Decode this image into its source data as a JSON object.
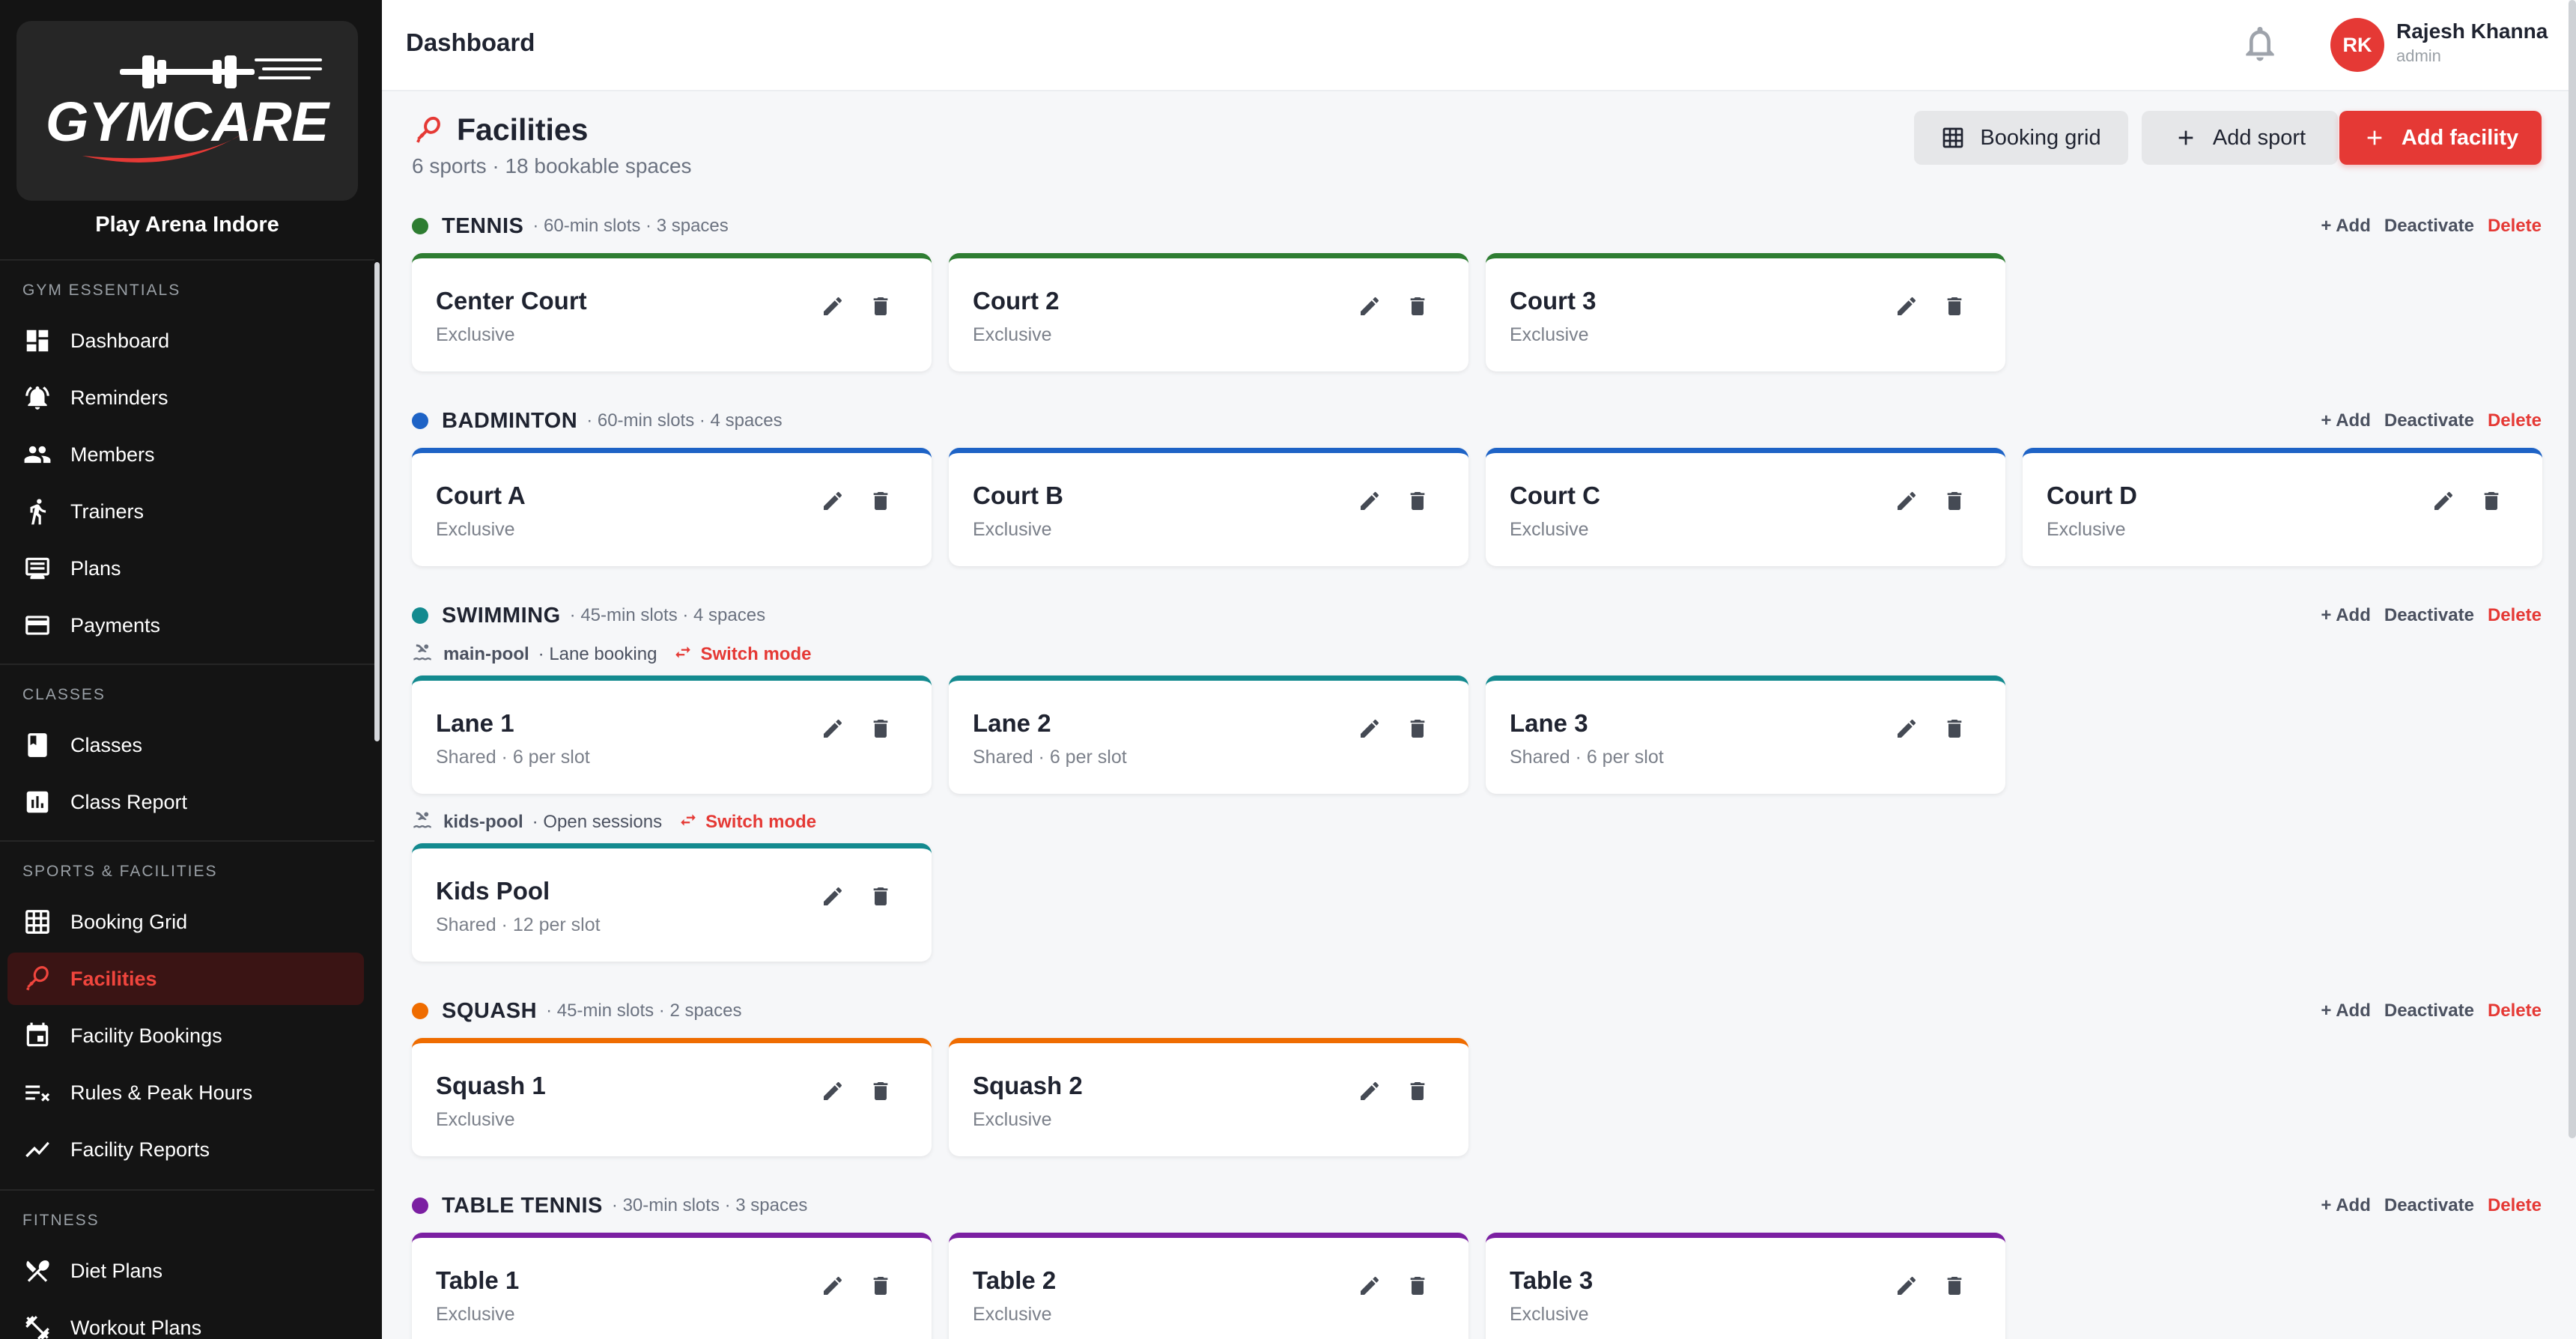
{
  "sidebar": {
    "logo_text": "GYMCARE",
    "org_name": "Play Arena Indore",
    "sections": [
      {
        "title": "GYM ESSENTIALS",
        "items": [
          {
            "label": "Dashboard",
            "icon": "dashboard-icon"
          },
          {
            "label": "Reminders",
            "icon": "bell-ring-icon"
          },
          {
            "label": "Members",
            "icon": "people-icon"
          },
          {
            "label": "Trainers",
            "icon": "trainer-icon"
          },
          {
            "label": "Plans",
            "icon": "plans-icon"
          },
          {
            "label": "Payments",
            "icon": "card-icon"
          }
        ]
      },
      {
        "title": "CLASSES",
        "items": [
          {
            "label": "Classes",
            "icon": "book-icon"
          },
          {
            "label": "Class Report",
            "icon": "chart-icon"
          }
        ]
      },
      {
        "title": "SPORTS & FACILITIES",
        "items": [
          {
            "label": "Booking Grid",
            "icon": "grid-icon"
          },
          {
            "label": "Facilities",
            "icon": "racket-icon",
            "active": true
          },
          {
            "label": "Facility Bookings",
            "icon": "calendar-icon"
          },
          {
            "label": "Rules & Peak Hours",
            "icon": "rules-icon"
          },
          {
            "label": "Facility Reports",
            "icon": "trend-icon"
          }
        ]
      },
      {
        "title": "FITNESS",
        "items": [
          {
            "label": "Diet Plans",
            "icon": "utensils-icon"
          },
          {
            "label": "Workout Plans",
            "icon": "dumbbell-icon"
          }
        ]
      }
    ]
  },
  "header": {
    "title": "Dashboard",
    "user_initials": "RK",
    "user_name": "Rajesh Khanna",
    "user_role": "admin"
  },
  "page": {
    "title": "Facilities",
    "subtitle": "6 sports · 18 bookable spaces",
    "buttons": {
      "booking_grid": "Booking grid",
      "add_sport": "Add sport",
      "add_facility": "Add facility"
    }
  },
  "actions": {
    "add": "+ Add",
    "deactivate": "Deactivate",
    "delete": "Delete",
    "switch_mode": "Switch mode"
  },
  "colors": {
    "tennis": "#2e7d32",
    "badminton": "#1e63c6",
    "swimming": "#138a8f",
    "squash": "#ef6c00",
    "table_tennis": "#7b1fa2",
    "accent": "#e53935"
  },
  "sports": [
    {
      "name": "TENNIS",
      "meta": "· 60-min slots · 3 spaces",
      "color": "#2e7d32",
      "groups": [
        {
          "pool": null,
          "spaces": [
            {
              "name": "Center Court",
              "type": "Exclusive"
            },
            {
              "name": "Court 2",
              "type": "Exclusive"
            },
            {
              "name": "Court 3",
              "type": "Exclusive"
            }
          ]
        }
      ]
    },
    {
      "name": "BADMINTON",
      "meta": "· 60-min slots · 4 spaces",
      "color": "#1e63c6",
      "groups": [
        {
          "pool": null,
          "spaces": [
            {
              "name": "Court A",
              "type": "Exclusive"
            },
            {
              "name": "Court B",
              "type": "Exclusive"
            },
            {
              "name": "Court C",
              "type": "Exclusive"
            },
            {
              "name": "Court D",
              "type": "Exclusive"
            }
          ]
        }
      ]
    },
    {
      "name": "SWIMMING",
      "meta": "· 45-min slots · 4 spaces",
      "color": "#138a8f",
      "groups": [
        {
          "pool": {
            "name": "main-pool",
            "mode": "· Lane booking"
          },
          "spaces": [
            {
              "name": "Lane 1",
              "type": "Shared · 6 per slot"
            },
            {
              "name": "Lane 2",
              "type": "Shared · 6 per slot"
            },
            {
              "name": "Lane 3",
              "type": "Shared · 6 per slot"
            }
          ]
        },
        {
          "pool": {
            "name": "kids-pool",
            "mode": "· Open sessions"
          },
          "spaces": [
            {
              "name": "Kids Pool",
              "type": "Shared · 12 per slot"
            }
          ]
        }
      ]
    },
    {
      "name": "SQUASH",
      "meta": "· 45-min slots · 2 spaces",
      "color": "#ef6c00",
      "groups": [
        {
          "pool": null,
          "spaces": [
            {
              "name": "Squash 1",
              "type": "Exclusive"
            },
            {
              "name": "Squash 2",
              "type": "Exclusive"
            }
          ]
        }
      ]
    },
    {
      "name": "TABLE TENNIS",
      "meta": "· 30-min slots · 3 spaces",
      "color": "#7b1fa2",
      "groups": [
        {
          "pool": null,
          "spaces": [
            {
              "name": "Table 1",
              "type": "Exclusive"
            },
            {
              "name": "Table 2",
              "type": "Exclusive"
            },
            {
              "name": "Table 3",
              "type": "Exclusive"
            }
          ]
        }
      ]
    }
  ]
}
